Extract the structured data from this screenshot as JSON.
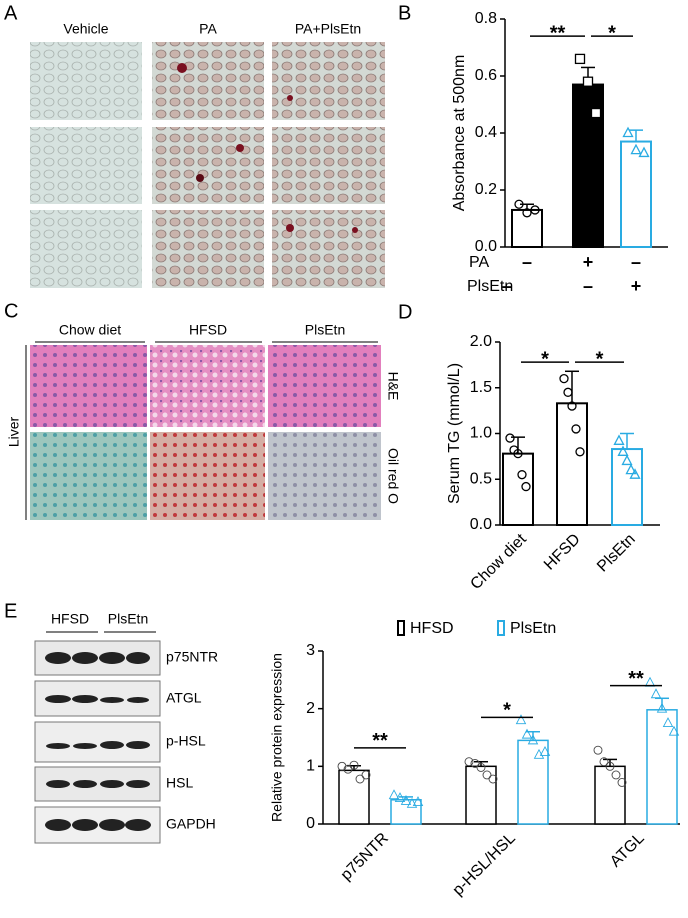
{
  "panels": {
    "A": {
      "label": "A",
      "columns": [
        "Vehicle",
        "PA",
        "PA+PlsEtn"
      ]
    },
    "B": {
      "label": "B"
    },
    "C": {
      "label": "C",
      "columns": [
        "Chow diet",
        "HFSD",
        "PlsEtn"
      ],
      "rows": [
        "H&E",
        "Oil red O"
      ],
      "tissue": "Liver"
    },
    "D": {
      "label": "D"
    },
    "E": {
      "label": "E",
      "groups": [
        "HFSD",
        "PlsEtn"
      ],
      "blots": [
        "p75NTR",
        "ATGL",
        "p-HSL",
        "HSL",
        "GAPDH"
      ]
    }
  },
  "chart_data": [
    {
      "type": "bar",
      "ylabel": "Absorbance at 500nm",
      "categories": [
        null,
        null,
        null
      ],
      "values": [
        0.13,
        0.57,
        0.37
      ],
      "errors": [
        0.02,
        0.06,
        0.04
      ],
      "points": [
        [
          0.15,
          0.12,
          0.13
        ],
        [
          0.66,
          0.58,
          0.47
        ],
        [
          0.4,
          0.34,
          0.33
        ]
      ],
      "colors": [
        "#000000",
        "#000000",
        "#29abe2"
      ],
      "fills": [
        "#ffffff",
        "#000000",
        "#ffffff"
      ],
      "markers": [
        "circle",
        "square",
        "triangle"
      ],
      "ylim": [
        0,
        0.8
      ],
      "yticks": [
        {
          "value": 0,
          "label": "0.0"
        },
        0.2,
        0.4,
        0.6,
        0.8
      ],
      "annotations": [
        {
          "text": "**",
          "y": 0.74
        },
        {
          "text": "*",
          "y": 0.74
        }
      ],
      "row_labels": [
        {
          "label": "PA",
          "signs": [
            "–",
            "+",
            "–"
          ]
        },
        {
          "label": "PlsEtn",
          "signs": [
            "–",
            "–",
            "+"
          ]
        }
      ]
    },
    {
      "type": "bar",
      "ylabel": "Serum TG (mmol/L)",
      "categories": [
        "Chow diet",
        "HFSD",
        "PlsEtn"
      ],
      "values": [
        0.78,
        1.33,
        0.83
      ],
      "errors": [
        0.18,
        0.35,
        0.17
      ],
      "points": [
        [
          0.95,
          0.82,
          0.78,
          0.55,
          0.42
        ],
        [
          1.6,
          1.45,
          1.3,
          1.05,
          0.8
        ],
        [
          0.92,
          0.8,
          0.7,
          0.6,
          0.55
        ]
      ],
      "colors": [
        "#000000",
        "#000000",
        "#29abe2"
      ],
      "fills": [
        "#ffffff",
        "#ffffff",
        "#ffffff"
      ],
      "markers": [
        "circle",
        "circle",
        "triangle"
      ],
      "ylim": [
        0,
        2
      ],
      "yticks": [
        {
          "value": 0,
          "label": "0.0"
        },
        0.5,
        {
          "value": 1,
          "label": "1.0"
        },
        1.5,
        {
          "value": 2,
          "label": "2.0"
        }
      ],
      "annotations": [
        {
          "text": "*",
          "y": 1.78
        },
        {
          "text": "*",
          "y": 1.78
        }
      ]
    },
    {
      "type": "grouped_bar",
      "ylabel": "Relative protein expression",
      "categories": [
        "p75NTR",
        "p-HSL/HSL",
        "ATGL"
      ],
      "series": [
        {
          "name": "HFSD",
          "color": "#000000",
          "marker": "circle",
          "values": [
            0.93,
            1.0,
            1.0
          ],
          "errors": [
            0.08,
            0.08,
            0.12
          ],
          "points": [
            [
              1.0,
              0.95,
              1.02,
              0.78,
              0.85
            ],
            [
              1.08,
              1.05,
              0.98,
              0.85,
              0.78
            ],
            [
              1.28,
              1.08,
              1.0,
              0.85,
              0.72
            ]
          ]
        },
        {
          "name": "PlsEtn",
          "color": "#29abe2",
          "marker": "triangle",
          "values": [
            0.42,
            1.45,
            1.98
          ],
          "errors": [
            0.05,
            0.15,
            0.2
          ],
          "points": [
            [
              0.5,
              0.45,
              0.4,
              0.35,
              0.38
            ],
            [
              1.8,
              1.55,
              1.45,
              1.2,
              1.25
            ],
            [
              2.45,
              2.25,
              2.0,
              1.75,
              1.6
            ]
          ]
        }
      ],
      "ylim": [
        0,
        3
      ],
      "yticks": [
        0,
        1,
        2,
        3
      ],
      "annotations": [
        {
          "text": "**",
          "y": 1.32
        },
        {
          "text": "*",
          "y": 1.85
        },
        {
          "text": "**",
          "y": 2.4
        }
      ]
    }
  ]
}
